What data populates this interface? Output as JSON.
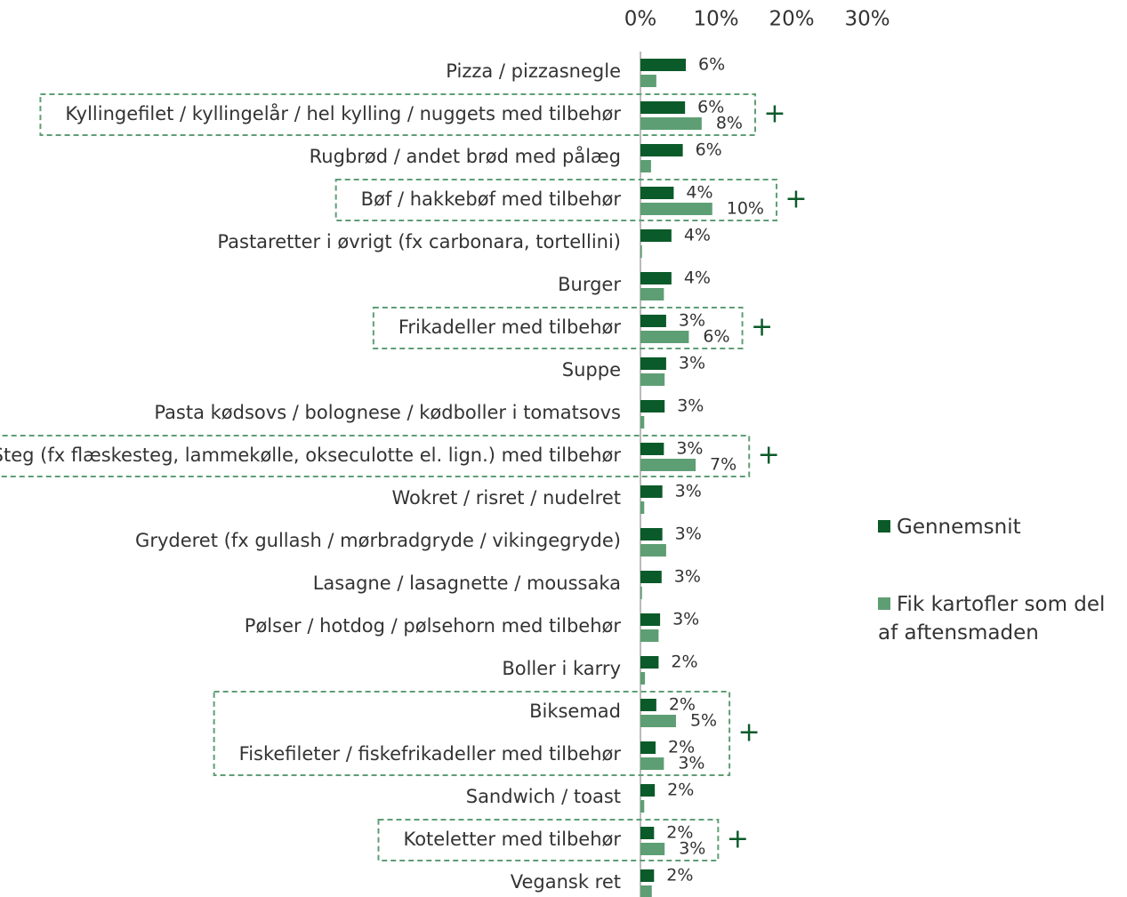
{
  "chart_data": {
    "type": "bar",
    "orientation": "horizontal",
    "categories": [
      "Pizza / pizzasnegle",
      "Kyllingefilet / kyllingelår / hel kylling / nuggets med tilbehør",
      "Rugbrød / andet brød med pålæg",
      "Bøf / hakkebøf med tilbehør",
      "Pastaretter i øvrigt (fx carbonara, tortellini)",
      "Burger",
      "Frikadeller med tilbehør",
      "Suppe",
      "Pasta kødsovs / bolognese / kødboller i tomatsovs",
      "Steg (fx flæskesteg, lammekølle, okseculotte el. lign.) med tilbehør",
      "Wokret / risret / nudelret",
      "Gryderet (fx gullash / mørbradgryde / vikingegryde)",
      "Lasagne / lasagnette / moussaka",
      "Pølser / hotdog / pølsehorn med tilbehør",
      "Boller i karry",
      "Biksemad",
      "Fiskefileter / fiskefrikadeller med tilbehør",
      "Sandwich / toast",
      "Koteletter med tilbehør",
      "Vegansk ret"
    ],
    "series": [
      {
        "name": "Gennemsnit",
        "color": "#0b5a2a",
        "values": [
          6.0,
          5.9,
          5.6,
          4.4,
          4.1,
          4.1,
          3.4,
          3.4,
          3.2,
          3.1,
          2.9,
          2.9,
          2.8,
          2.6,
          2.4,
          2.1,
          2.0,
          1.9,
          1.8,
          1.8
        ],
        "value_labels": [
          "6%",
          "6%",
          "6%",
          "4%",
          "4%",
          "4%",
          "3%",
          "3%",
          "3%",
          "3%",
          "3%",
          "3%",
          "3%",
          "3%",
          "2%",
          "2%",
          "2%",
          "2%",
          "2%",
          "2%"
        ]
      },
      {
        "name": "Fik kartofler som del af aftensmaden",
        "color": "#5e9e74",
        "values": [
          2.1,
          8.1,
          1.4,
          9.5,
          0.2,
          3.1,
          6.4,
          3.2,
          0.5,
          7.3,
          0.5,
          3.4,
          0.2,
          2.4,
          0.6,
          4.7,
          3.1,
          0.5,
          3.2,
          1.5
        ],
        "value_labels": [
          null,
          "8%",
          null,
          "10%",
          null,
          null,
          "6%",
          null,
          null,
          "7%",
          null,
          null,
          null,
          null,
          null,
          "5%",
          "3%",
          null,
          "3%",
          null
        ]
      }
    ],
    "xlim": [
      0,
      30
    ],
    "xticks": [
      {
        "value": 0,
        "label": "0%"
      },
      {
        "value": 10,
        "label": "10%"
      },
      {
        "value": 20,
        "label": "20%"
      },
      {
        "value": 30,
        "label": "30%"
      }
    ],
    "highlights": [
      {
        "rows": [
          1
        ],
        "mark": "+"
      },
      {
        "rows": [
          3
        ],
        "mark": "+"
      },
      {
        "rows": [
          6
        ],
        "mark": "+"
      },
      {
        "rows": [
          9
        ],
        "mark": "+"
      },
      {
        "rows": [
          15,
          16
        ],
        "mark": "+"
      },
      {
        "rows": [
          18
        ],
        "mark": "+"
      }
    ],
    "legend": "right"
  }
}
